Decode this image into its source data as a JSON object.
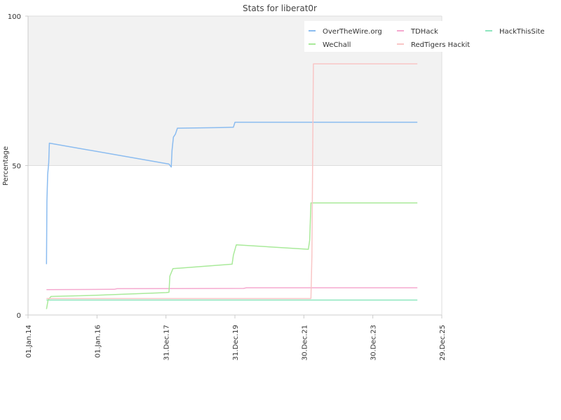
{
  "chart_data": {
    "type": "line",
    "title": "Stats for liberat0r",
    "xlabel": "",
    "ylabel": "Percentage",
    "ylim": [
      0,
      100
    ],
    "yticks": [
      0,
      50,
      100
    ],
    "xlim": [
      "2014-01-01",
      "2025-12-29"
    ],
    "xticks": [
      {
        "date": "2014-01-01",
        "label": "01.Jan.14"
      },
      {
        "date": "2016-01-01",
        "label": "01.Jan.16"
      },
      {
        "date": "2017-12-31",
        "label": "31.Dec.17"
      },
      {
        "date": "2019-12-31",
        "label": "31.Dec.19"
      },
      {
        "date": "2021-12-30",
        "label": "30.Dec.21"
      },
      {
        "date": "2023-12-30",
        "label": "30.Dec.23"
      },
      {
        "date": "2025-12-29",
        "label": "29.Dec.25"
      }
    ],
    "grid": true,
    "upper_band_shaded": true,
    "legend_position": "top-right",
    "series": [
      {
        "name": "OverTheWire.org",
        "color": "#8bbcf0",
        "points": [
          [
            "2014-07-15",
            17
          ],
          [
            "2014-07-20",
            38
          ],
          [
            "2014-07-28",
            47
          ],
          [
            "2014-08-08",
            51
          ],
          [
            "2014-08-15",
            57.5
          ],
          [
            "2018-02-01",
            50.5
          ],
          [
            "2018-02-25",
            49.5
          ],
          [
            "2018-03-05",
            55
          ],
          [
            "2018-03-20",
            59.5
          ],
          [
            "2018-04-10",
            60.5
          ],
          [
            "2018-05-01",
            62.5
          ],
          [
            "2019-08-01",
            62.7
          ],
          [
            "2019-12-15",
            62.8
          ],
          [
            "2020-01-01",
            64.5
          ],
          [
            "2025-04-15",
            64.5
          ]
        ]
      },
      {
        "name": "TDHack",
        "color": "#f5a9cf",
        "points": [
          [
            "2014-07-15",
            8.5
          ],
          [
            "2016-07-01",
            8.6
          ],
          [
            "2016-08-01",
            8.8
          ],
          [
            "2020-04-01",
            8.9
          ],
          [
            "2020-05-01",
            9.1
          ],
          [
            "2025-04-15",
            9.1
          ]
        ]
      },
      {
        "name": "HackThisSite",
        "color": "#8ee6bf",
        "points": [
          [
            "2014-07-15",
            5
          ],
          [
            "2025-04-15",
            5
          ]
        ]
      },
      {
        "name": "WeChall",
        "color": "#a9ea9a",
        "points": [
          [
            "2014-07-15",
            2
          ],
          [
            "2014-08-01",
            5
          ],
          [
            "2014-09-01",
            6.2
          ],
          [
            "2016-01-01",
            6.6
          ],
          [
            "2017-12-31",
            7.5
          ],
          [
            "2018-02-01",
            7.6
          ],
          [
            "2018-02-10",
            13
          ],
          [
            "2018-03-15",
            15.5
          ],
          [
            "2019-12-01",
            17
          ],
          [
            "2019-12-15",
            20
          ],
          [
            "2020-01-15",
            23.5
          ],
          [
            "2022-02-15",
            22
          ],
          [
            "2022-03-01",
            25
          ],
          [
            "2022-03-15",
            37.5
          ],
          [
            "2025-04-15",
            37.5
          ]
        ]
      },
      {
        "name": "RedTigers Hackit",
        "color": "#f9c6c6",
        "points": [
          [
            "2014-07-15",
            5.5
          ],
          [
            "2022-03-15",
            5.5
          ],
          [
            "2022-03-25",
            20
          ],
          [
            "2022-04-10",
            84
          ],
          [
            "2025-04-15",
            84
          ]
        ]
      }
    ]
  }
}
